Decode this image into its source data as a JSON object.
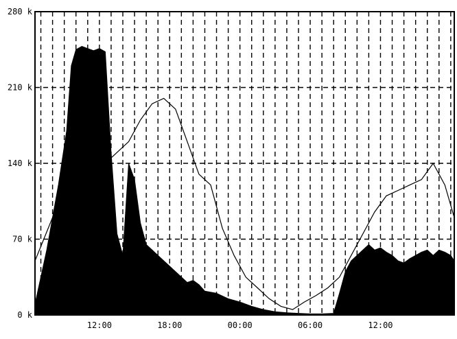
{
  "chart_data": {
    "type": "area",
    "title": "",
    "xlabel": "",
    "ylabel": "",
    "y_ticks": [
      "0 k",
      "70 k",
      "140 k",
      "210 k",
      "280 k"
    ],
    "ylim": [
      0,
      280000
    ],
    "x_ticks": [
      {
        "label": "12:00",
        "hour": 12
      },
      {
        "label": "18:00",
        "hour": 18
      },
      {
        "label": "00:00",
        "hour": 24
      },
      {
        "label": "06:00",
        "hour": 30
      },
      {
        "label": "12:00",
        "hour": 36
      }
    ],
    "xlim_hours": [
      6.5,
      42.3
    ],
    "grid": true,
    "series": [
      {
        "style": "filled",
        "color": "#000000",
        "x_hours": [
          6.5,
          7.5,
          8.5,
          9.2,
          9.6,
          10.0,
          10.5,
          11.0,
          11.5,
          12.0,
          12.5,
          13.0,
          13.5,
          14.0,
          14.5,
          15.0,
          15.5,
          16.0,
          16.5,
          17.0,
          17.5,
          18.0,
          18.5,
          19.0,
          19.5,
          20.0,
          20.5,
          21.0,
          22.0,
          23.0,
          24.0,
          25.0,
          26.0,
          27.0,
          28.0,
          29.0,
          30.0,
          31.0,
          32.0,
          32.5,
          33.0,
          33.5,
          34.0,
          34.5,
          35.0,
          35.5,
          36.0,
          36.5,
          37.0,
          37.5,
          38.0,
          38.5,
          39.0,
          39.5,
          40.0,
          40.5,
          41.0,
          41.5,
          42.0,
          42.3
        ],
        "values": [
          10000,
          60000,
          120000,
          170000,
          230000,
          245000,
          248000,
          246000,
          244000,
          246000,
          243000,
          150000,
          75000,
          55000,
          140000,
          125000,
          85000,
          65000,
          60000,
          55000,
          50000,
          45000,
          40000,
          35000,
          30000,
          32000,
          28000,
          22000,
          20000,
          15000,
          12000,
          8000,
          5000,
          3000,
          2000,
          1500,
          1000,
          1000,
          1500,
          20000,
          40000,
          50000,
          55000,
          60000,
          65000,
          60000,
          62000,
          58000,
          55000,
          50000,
          48000,
          52000,
          55000,
          58000,
          60000,
          55000,
          60000,
          58000,
          55000,
          50000
        ]
      },
      {
        "style": "line",
        "color": "#000000",
        "x_hours": [
          6.5,
          8.0,
          9.5,
          11.0,
          12.5,
          13.5,
          14.5,
          15.5,
          16.5,
          17.5,
          18.5,
          19.5,
          20.5,
          21.5,
          22.5,
          23.5,
          24.5,
          25.5,
          26.5,
          27.5,
          28.5,
          29.5,
          30.5,
          31.5,
          32.5,
          33.5,
          34.5,
          35.5,
          36.5,
          37.5,
          38.5,
          39.5,
          40.5,
          41.5,
          42.3
        ],
        "values": [
          50000,
          90000,
          150000,
          190000,
          140000,
          150000,
          160000,
          180000,
          195000,
          200000,
          190000,
          160000,
          130000,
          120000,
          80000,
          55000,
          35000,
          25000,
          15000,
          8000,
          5000,
          12000,
          18000,
          25000,
          35000,
          55000,
          75000,
          95000,
          110000,
          115000,
          120000,
          125000,
          140000,
          120000,
          90000
        ]
      }
    ]
  }
}
